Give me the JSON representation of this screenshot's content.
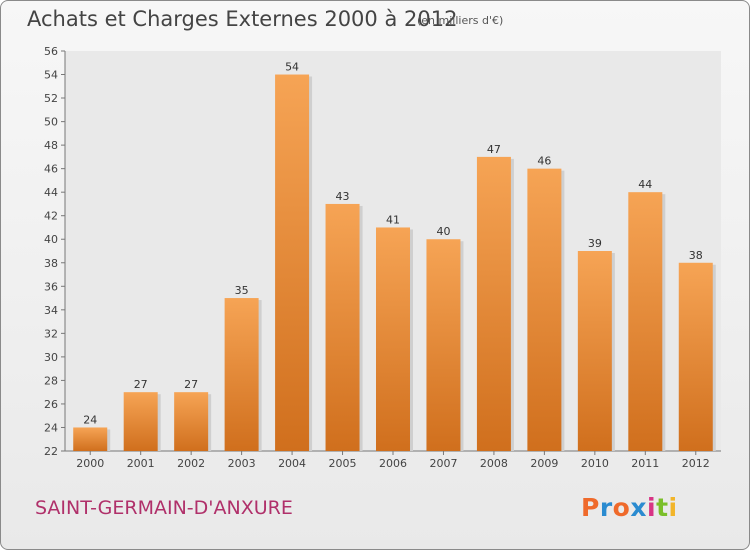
{
  "title": "Achats et Charges Externes 2000 à 2012",
  "subtitle": "(en milliers d'€)",
  "commune": "SAINT-GERMAIN-D'ANXURE",
  "logo": {
    "text": "Proxiti",
    "colors": [
      "#ef6a2b",
      "#2a8bd0",
      "#ef6a2b",
      "#2a8bd0",
      "#d83585",
      "#7bbf2a",
      "#f2b52a"
    ]
  },
  "colors": {
    "bar_top": "#f6a455",
    "bar_bottom": "#d06f1d",
    "title": "#444444",
    "commune": "#b0306a"
  },
  "chart_data": {
    "type": "bar",
    "title": "Achats et Charges Externes 2000 à 2012",
    "subtitle": "(en milliers d'€)",
    "categories": [
      "2000",
      "2001",
      "2002",
      "2003",
      "2004",
      "2005",
      "2006",
      "2007",
      "2008",
      "2009",
      "2010",
      "2011",
      "2012"
    ],
    "values": [
      24,
      27,
      27,
      35,
      54,
      43,
      41,
      40,
      47,
      46,
      39,
      44,
      38
    ],
    "ylim": [
      22,
      56
    ],
    "yticks": [
      22,
      24,
      26,
      28,
      30,
      32,
      34,
      36,
      38,
      40,
      42,
      44,
      46,
      48,
      50,
      52,
      54,
      56
    ],
    "grid": false,
    "data_labels": true
  }
}
